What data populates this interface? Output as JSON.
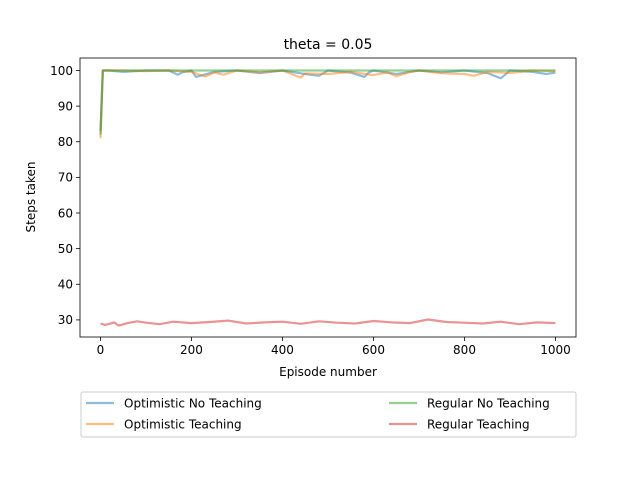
{
  "chart_data": {
    "type": "line",
    "title": "theta = 0.05",
    "xlabel": "Episode number",
    "ylabel": "Steps taken",
    "xlim": [
      -45,
      1045
    ],
    "ylim": [
      25.2,
      103.5
    ],
    "xticks": [
      "0",
      "200",
      "400",
      "600",
      "800",
      "1000"
    ],
    "yticks": [
      "30",
      "40",
      "50",
      "60",
      "70",
      "80",
      "90",
      "100"
    ],
    "grid": false,
    "legend_placement": "below chart, two columns",
    "series": [
      {
        "name": "Optimistic No Teaching",
        "color": "#1f77b4",
        "x": [
          0,
          5,
          20,
          50,
          100,
          150,
          170,
          180,
          200,
          210,
          250,
          300,
          350,
          400,
          450,
          480,
          500,
          550,
          580,
          590,
          600,
          650,
          680,
          700,
          750,
          800,
          850,
          880,
          900,
          950,
          980,
          1000
        ],
        "y": [
          83,
          100,
          100,
          99.6,
          100,
          100,
          98.8,
          99.5,
          100,
          98.2,
          99.6,
          100,
          99.3,
          100,
          99.0,
          98.5,
          100,
          99.4,
          98.2,
          99.5,
          100,
          99.0,
          99.6,
          100,
          99.5,
          100,
          99.3,
          97.8,
          100,
          99.6,
          99.0,
          99.4
        ]
      },
      {
        "name": "Optimistic Teaching",
        "color": "#ff7f0e",
        "x": [
          0,
          5,
          20,
          50,
          100,
          150,
          200,
          230,
          250,
          270,
          300,
          350,
          400,
          440,
          450,
          500,
          550,
          600,
          630,
          650,
          680,
          700,
          750,
          800,
          820,
          850,
          900,
          950,
          1000
        ],
        "y": [
          81,
          100,
          100,
          100,
          99.8,
          100,
          99.6,
          98.3,
          99.4,
          98.8,
          100,
          99.5,
          100,
          98.0,
          99.2,
          99.0,
          99.6,
          98.7,
          99.5,
          98.4,
          99.6,
          100,
          99.2,
          99.0,
          98.5,
          99.6,
          99.3,
          100,
          99.8
        ]
      },
      {
        "name": "Regular No Teaching",
        "color": "#2ca02c",
        "x": [
          0,
          5,
          20,
          100,
          200,
          300,
          400,
          500,
          600,
          700,
          800,
          900,
          1000
        ],
        "y": [
          82,
          100,
          100,
          100,
          100,
          100,
          100,
          100,
          100,
          100,
          100,
          100,
          100
        ]
      },
      {
        "name": "Regular Teaching",
        "color": "#d62728",
        "x": [
          0,
          10,
          20,
          30,
          40,
          60,
          80,
          100,
          130,
          160,
          200,
          240,
          280,
          320,
          360,
          400,
          440,
          480,
          520,
          560,
          600,
          640,
          680,
          720,
          760,
          800,
          840,
          880,
          920,
          960,
          1000
        ],
        "y": [
          29.0,
          28.6,
          28.9,
          29.3,
          28.4,
          29.1,
          29.6,
          29.2,
          28.8,
          29.5,
          29.1,
          29.4,
          29.8,
          29.0,
          29.3,
          29.5,
          28.9,
          29.6,
          29.2,
          29.0,
          29.7,
          29.3,
          29.1,
          30.1,
          29.4,
          29.2,
          29.0,
          29.5,
          28.8,
          29.3,
          29.1
        ]
      }
    ]
  }
}
